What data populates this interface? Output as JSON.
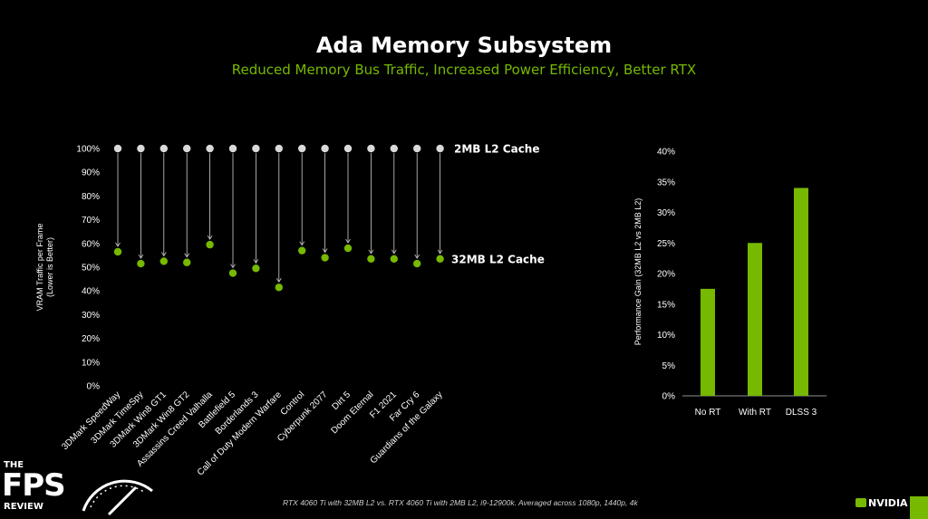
{
  "header": {
    "title": "Ada Memory Subsystem",
    "subtitle": "Reduced Memory Bus Traffic, Increased Power Efficiency, Better RTX"
  },
  "footnote": "RTX 4060 Ti with 32MB L2 vs. RTX 4060 Ti with 2MB L2, i9-12900k. Averaged across 1080p, 1440p, 4k",
  "logo": {
    "line1": "THE",
    "line2": "FPS",
    "line3": "REVIEW"
  },
  "brand": {
    "name": "NVIDIA"
  },
  "colors": {
    "accent": "#76b900",
    "grey_dot": "#d9d9d9",
    "background": "#000000"
  },
  "chart_data": [
    {
      "type": "scatter",
      "title": "",
      "ylabel": "VRAM Traffic per Frame (Lower is Better)",
      "ylim": [
        0,
        100
      ],
      "yticks": [
        "0%",
        "10%",
        "20%",
        "30%",
        "40%",
        "50%",
        "60%",
        "70%",
        "80%",
        "90%",
        "100%"
      ],
      "grid": false,
      "categories": [
        "3DMark SpeedWay",
        "3DMark TimeSpy",
        "3DMark Win8 GT1",
        "3DMark Win8 GT2",
        "Assassins Creed Valhalla",
        "Battlefield 5",
        "Borderlands 3",
        "Call of Duty Modern Warfare",
        "Control",
        "Cyberpunk 2077",
        "Dirt 5",
        "Doom Eternal",
        "F1 2021",
        "Far Cry 6",
        "Guardians of the Galaxy"
      ],
      "series": [
        {
          "name": "2MB L2 Cache",
          "color": "#d9d9d9",
          "values": [
            100,
            100,
            100,
            100,
            100,
            100,
            100,
            100,
            100,
            100,
            100,
            100,
            100,
            100,
            100
          ]
        },
        {
          "name": "32MB L2 Cache",
          "color": "#76b900",
          "values": [
            56.5,
            51.5,
            52.5,
            52,
            59.5,
            47.5,
            49.5,
            41.5,
            57,
            54,
            58,
            53.5,
            53.5,
            51.5,
            53.5
          ]
        }
      ]
    },
    {
      "type": "bar",
      "title": "",
      "ylabel": "Performance Gain (32MB L2 vs 2MB L2)",
      "ylim": [
        0,
        40
      ],
      "yticks": [
        "0%",
        "5%",
        "10%",
        "15%",
        "20%",
        "25%",
        "30%",
        "35%",
        "40%"
      ],
      "grid": false,
      "categories": [
        "No RT",
        "With RT",
        "DLSS 3"
      ],
      "values": [
        17.5,
        25,
        34
      ],
      "color": "#76b900"
    }
  ]
}
